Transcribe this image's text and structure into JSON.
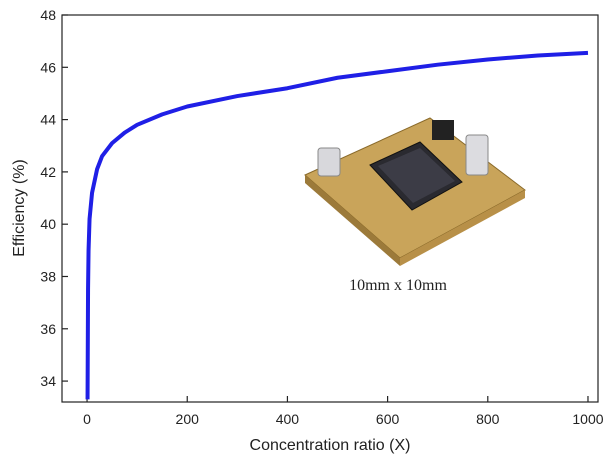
{
  "chart_data": {
    "type": "line",
    "xlabel": "Concentration ratio (X)",
    "ylabel": "Efficiency (%)",
    "annotation": "10mm x 10mm",
    "x": [
      1,
      2,
      3,
      5,
      10,
      20,
      30,
      50,
      75,
      100,
      150,
      200,
      300,
      400,
      500,
      600,
      700,
      800,
      900,
      1000
    ],
    "series": [
      {
        "color": "#1f1fe6",
        "values": [
          33.3,
          37.5,
          39.0,
          40.2,
          41.2,
          42.1,
          42.6,
          43.1,
          43.5,
          43.8,
          44.2,
          44.5,
          44.9,
          45.2,
          45.6,
          45.85,
          46.1,
          46.3,
          46.45,
          46.55
        ]
      }
    ],
    "xlim": [
      -50,
      1020
    ],
    "ylim": [
      33.2,
      48
    ],
    "xticks": [
      0,
      200,
      400,
      600,
      800,
      1000
    ],
    "yticks": [
      34,
      36,
      38,
      40,
      42,
      44,
      46,
      48
    ]
  }
}
